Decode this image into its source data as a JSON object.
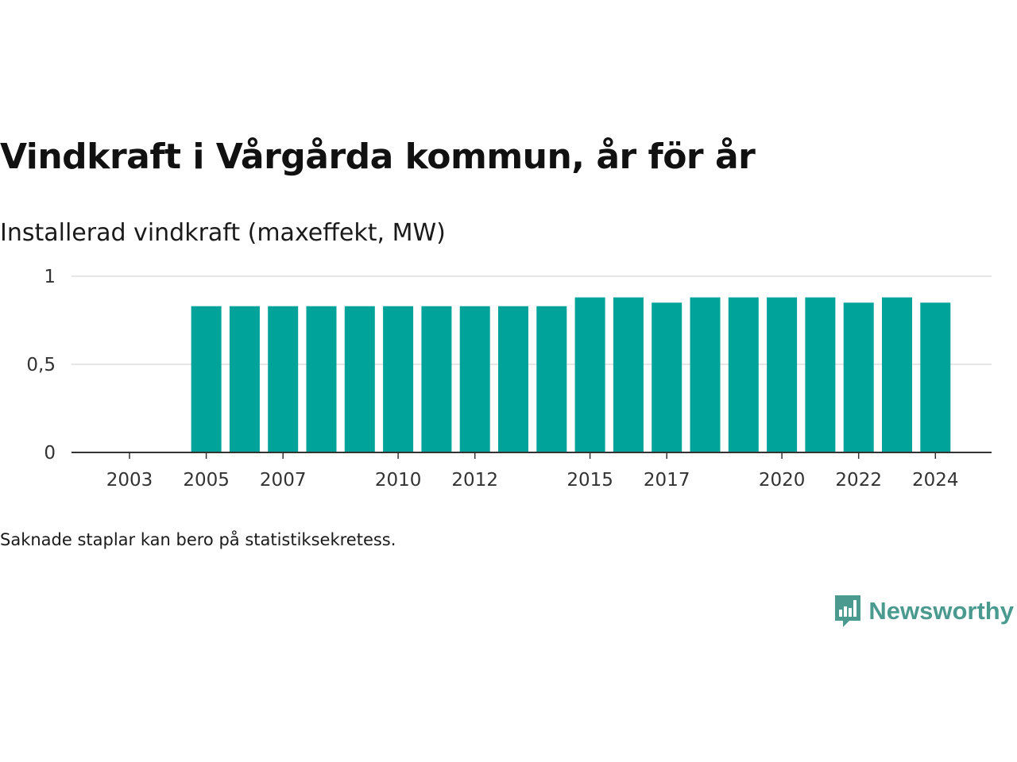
{
  "title": "Vindkraft i Vårgårda kommun, år för år",
  "subtitle": "Installerad vindkraft (maxeffekt, MW)",
  "footnote": "Saknade staplar kan bero på statistiksekretess.",
  "brand": {
    "name": "Newsworthy",
    "icon": "newsworthy-logo-icon",
    "color": "#4a9a90"
  },
  "chart_data": {
    "type": "bar",
    "title": "Vindkraft i Vårgårda kommun, år för år",
    "ylabel": "Installerad vindkraft (maxeffekt, MW)",
    "xlabel": "",
    "categories": [
      2003,
      2004,
      2005,
      2006,
      2007,
      2008,
      2009,
      2010,
      2011,
      2012,
      2013,
      2014,
      2015,
      2016,
      2017,
      2018,
      2019,
      2020,
      2021,
      2022,
      2023,
      2024
    ],
    "values": [
      null,
      null,
      0.83,
      0.83,
      0.83,
      0.83,
      0.83,
      0.83,
      0.83,
      0.83,
      0.83,
      0.83,
      0.88,
      0.88,
      0.85,
      0.88,
      0.88,
      0.88,
      0.88,
      0.85,
      0.88,
      0.85
    ],
    "xticks": [
      2003,
      2005,
      2007,
      2010,
      2012,
      2015,
      2017,
      2020,
      2022,
      2024
    ],
    "yticks": [
      0,
      0.5,
      1
    ],
    "ytick_labels": [
      "0",
      "0,5",
      "1"
    ],
    "ylim": [
      0,
      1
    ],
    "grid": true,
    "bar_color": "#00a39a",
    "grid_color": "#dddddd",
    "axis_color": "#333333"
  }
}
